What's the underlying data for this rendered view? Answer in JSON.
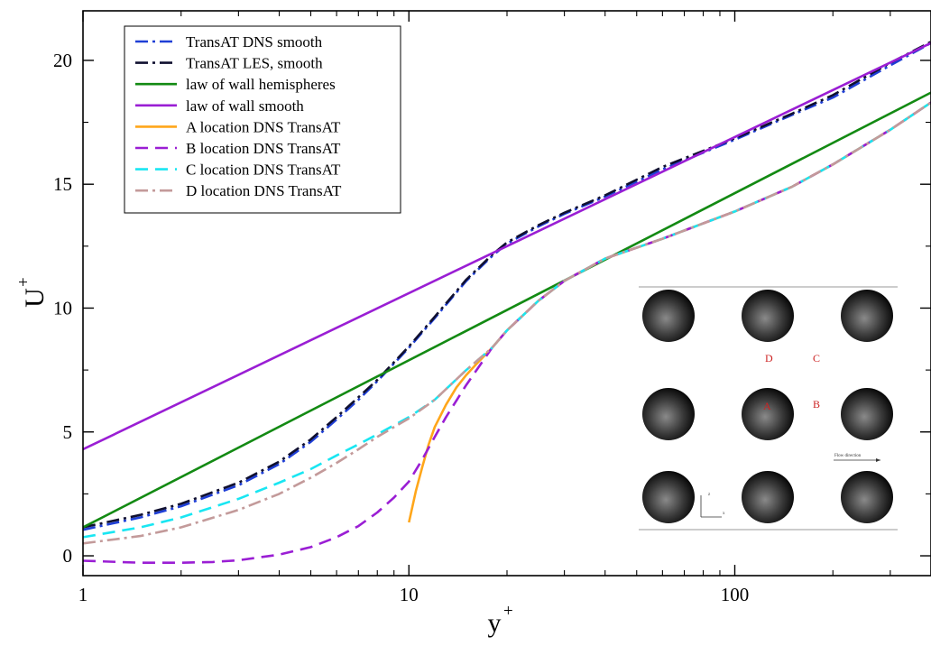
{
  "chart_data": {
    "type": "line",
    "xscale": "log",
    "xlim": [
      1,
      400
    ],
    "ylim": [
      -0.8,
      22
    ],
    "xlabel": "y",
    "xlabel_sup": "+",
    "ylabel": "U",
    "ylabel_sup": "+",
    "x_ticks": [
      1,
      10,
      100
    ],
    "x_tick_labels": [
      "1",
      "10",
      "100"
    ],
    "y_ticks": [
      0,
      5,
      10,
      15,
      20
    ],
    "y_tick_labels": [
      "0",
      "5",
      "10",
      "15",
      "20"
    ],
    "grid": false,
    "legend_position": "top-left",
    "series": [
      {
        "name": "TransAT DNS smooth",
        "color": "#1f3fd6",
        "dash": "dash-dot",
        "x": [
          1,
          1.5,
          2,
          3,
          4,
          5,
          6,
          7,
          8,
          10,
          12,
          15,
          18,
          20,
          25,
          30,
          40,
          60,
          100,
          150,
          200,
          300,
          400
        ],
        "y": [
          1.05,
          1.55,
          2.0,
          2.85,
          3.7,
          4.6,
          5.5,
          6.3,
          7.05,
          8.4,
          9.6,
          11.1,
          12.1,
          12.6,
          13.3,
          13.8,
          14.5,
          15.6,
          16.8,
          17.8,
          18.5,
          19.8,
          20.7
        ]
      },
      {
        "name": "TransAT LES, smooth",
        "color": "#101030",
        "dash": "dash-dot",
        "x": [
          1,
          1.5,
          2,
          3,
          4,
          5,
          6,
          7,
          8,
          10,
          12,
          15,
          18,
          20,
          25,
          30,
          40,
          60,
          100,
          150,
          200,
          300,
          400
        ],
        "y": [
          1.15,
          1.65,
          2.1,
          2.95,
          3.8,
          4.7,
          5.6,
          6.4,
          7.1,
          8.45,
          9.65,
          11.15,
          12.15,
          12.65,
          13.35,
          13.85,
          14.55,
          15.7,
          16.85,
          17.85,
          18.6,
          19.9,
          20.75
        ]
      },
      {
        "name": "law of wall hemispheres",
        "color": "#138a13",
        "dash": "solid",
        "x": [
          1,
          400
        ],
        "y": [
          1.15,
          18.7
        ]
      },
      {
        "name": "law of wall smooth",
        "color": "#9a1ed4",
        "dash": "solid",
        "x": [
          1,
          400
        ],
        "y": [
          4.3,
          20.7
        ]
      },
      {
        "name": "A location DNS TransAT",
        "color": "#ffa61a",
        "dash": "solid",
        "x": [
          10,
          10.5,
          11,
          11.5,
          12,
          13,
          14,
          15,
          16,
          18,
          20,
          25,
          30,
          40,
          60,
          100,
          150,
          200,
          300,
          400
        ],
        "y": [
          1.35,
          2.6,
          3.6,
          4.5,
          5.2,
          6.1,
          6.8,
          7.3,
          7.7,
          8.4,
          9.1,
          10.3,
          11.1,
          12.0,
          12.8,
          13.9,
          14.9,
          15.8,
          17.2,
          18.3
        ]
      },
      {
        "name": "B location DNS TransAT",
        "color": "#9a1ed4",
        "dash": "dashed",
        "x": [
          1,
          1.5,
          2,
          2.5,
          3,
          4,
          5,
          6,
          7,
          8,
          9,
          10,
          11,
          12,
          13,
          15,
          18,
          20,
          25,
          30,
          40,
          60,
          100,
          150,
          200,
          300,
          400
        ],
        "y": [
          -0.2,
          -0.28,
          -0.28,
          -0.25,
          -0.18,
          0.05,
          0.35,
          0.75,
          1.2,
          1.75,
          2.35,
          3.0,
          3.9,
          4.8,
          5.6,
          6.9,
          8.4,
          9.1,
          10.3,
          11.1,
          12.0,
          12.8,
          13.9,
          14.9,
          15.8,
          17.2,
          18.3
        ]
      },
      {
        "name": "C location DNS TransAT",
        "color": "#19e6f2",
        "dash": "dashed",
        "x": [
          1,
          1.5,
          2,
          3,
          4,
          5,
          6,
          7,
          8,
          10,
          12,
          15,
          18,
          20,
          25,
          30,
          40,
          60,
          100,
          150,
          200,
          300,
          400
        ],
        "y": [
          0.75,
          1.15,
          1.55,
          2.3,
          2.95,
          3.5,
          4.05,
          4.5,
          4.9,
          5.6,
          6.3,
          7.5,
          8.4,
          9.1,
          10.3,
          11.1,
          12.0,
          12.8,
          13.9,
          14.9,
          15.8,
          17.2,
          18.3
        ]
      },
      {
        "name": "D location DNS TransAT",
        "color": "#c39a9a",
        "dash": "dash-dot",
        "x": [
          1,
          1.5,
          2,
          3,
          4,
          5,
          6,
          7,
          8,
          10,
          12,
          15,
          18,
          20,
          25,
          30,
          40,
          60,
          100,
          150,
          200,
          300,
          400
        ],
        "y": [
          0.5,
          0.8,
          1.15,
          1.85,
          2.5,
          3.15,
          3.75,
          4.3,
          4.8,
          5.55,
          6.3,
          7.5,
          8.4,
          9.1,
          10.3,
          11.1,
          12.0,
          12.8,
          13.9,
          14.9,
          15.8,
          17.2,
          18.3
        ]
      }
    ],
    "inset": {
      "labels": {
        "A": "A",
        "B": "B",
        "C": "C",
        "D": "D"
      },
      "flow_label": "Flow direction",
      "axis_z": "z",
      "axis_x": "x",
      "label_color": "#cc2222"
    }
  }
}
